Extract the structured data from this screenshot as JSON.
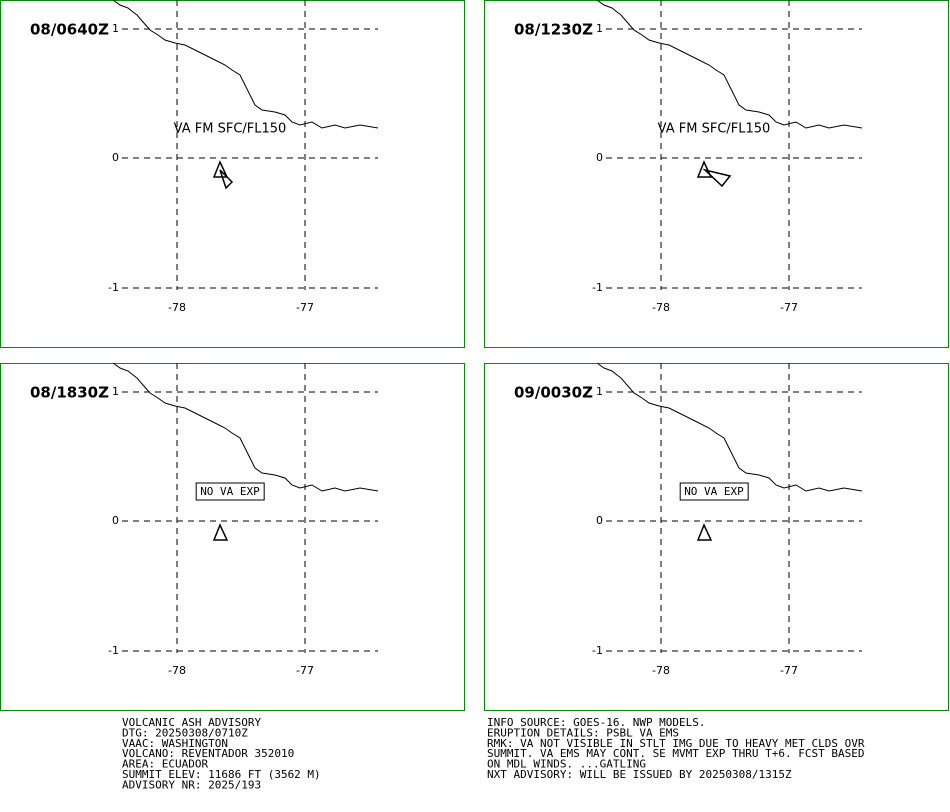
{
  "panels": [
    {
      "time": "08/0640Z",
      "annotation": "VA FM SFC/FL150"
    },
    {
      "time": "08/1230Z",
      "annotation": "VA FM SFC/FL150"
    },
    {
      "time": "08/1830Z",
      "annotation": "NO VA EXP"
    },
    {
      "time": "09/0030Z",
      "annotation": "NO VA EXP"
    }
  ],
  "lat_labels": [
    "1",
    "0",
    "-1"
  ],
  "lon_labels": [
    "-78",
    "-77"
  ],
  "advisory_left": [
    "VOLCANIC ASH ADVISORY",
    "DTG: 20250308/0710Z",
    "VAAC: WASHINGTON",
    "VOLCANO: REVENTADOR 352010",
    "AREA: ECUADOR",
    "SUMMIT ELEV: 11686 FT (3562 M)",
    "ADVISORY NR: 2025/193"
  ],
  "advisory_right": [
    "INFO SOURCE: GOES-16. NWP MODELS.",
    "ERUPTION DETAILS: PSBL VA EMS",
    "RMK: VA NOT VISIBLE IN STLT IMG DUE TO HEAVY MET CLDS OVR",
    "SUMMIT. VA EMS MAY CONT. SE MVMT EXP THRU T+6. FCST BASED",
    "ON MDL WINDS. ...GATLING",
    "NXT ADVISORY: WILL BE ISSUED BY 20250308/1315Z"
  ]
}
